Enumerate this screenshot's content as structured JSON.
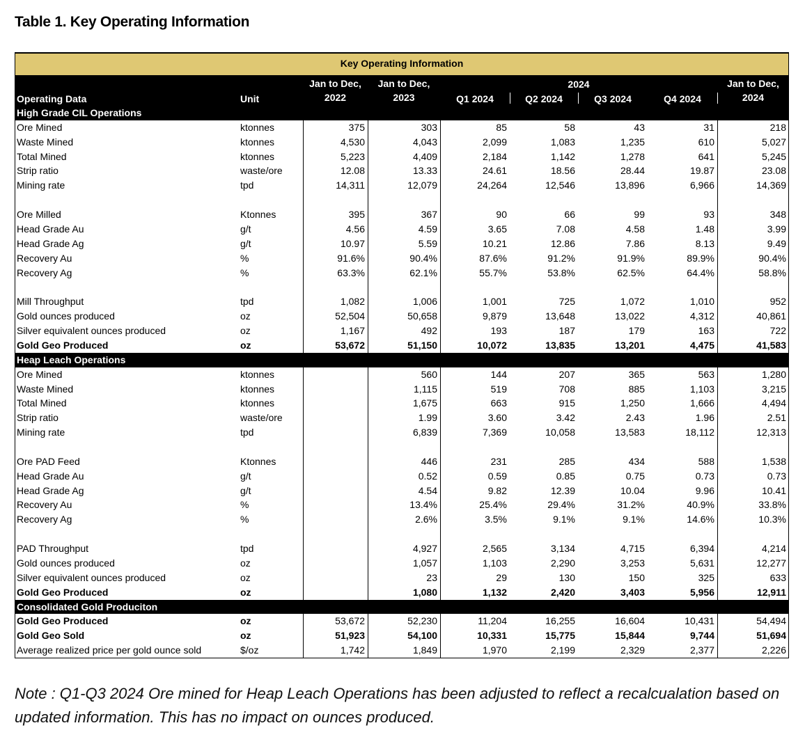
{
  "title": "Table 1. Key Operating Information",
  "table": {
    "banner": "Key Operating Information",
    "header": {
      "label": "Operating Data",
      "unit": "Unit",
      "year_group": "2024",
      "columns": [
        [
          "Jan to Dec,",
          "2022"
        ],
        [
          "Jan to Dec,",
          "2023"
        ],
        [
          "Q1 2024"
        ],
        [
          "Q2 2024"
        ],
        [
          "Q3 2024"
        ],
        [
          "Q4 2024"
        ],
        [
          "Jan to Dec,",
          "2024"
        ]
      ]
    },
    "sections": [
      {
        "title": "High Grade CIL Operations",
        "groups": [
          [
            {
              "label": "Ore Mined",
              "unit": "ktonnes",
              "values": [
                "375",
                "303",
                "85",
                "58",
                "43",
                "31",
                "218"
              ]
            },
            {
              "label": "Waste Mined",
              "unit": "ktonnes",
              "values": [
                "4,530",
                "4,043",
                "2,099",
                "1,083",
                "1,235",
                "610",
                "5,027"
              ]
            },
            {
              "label": "Total Mined",
              "unit": "ktonnes",
              "values": [
                "5,223",
                "4,409",
                "2,184",
                "1,142",
                "1,278",
                "641",
                "5,245"
              ]
            },
            {
              "label": "Strip ratio",
              "unit": "waste/ore",
              "values": [
                "12.08",
                "13.33",
                "24.61",
                "18.56",
                "28.44",
                "19.87",
                "23.08"
              ]
            },
            {
              "label": "Mining rate",
              "unit": "tpd",
              "values": [
                "14,311",
                "12,079",
                "24,264",
                "12,546",
                "13,896",
                "6,966",
                "14,369"
              ]
            }
          ],
          [
            {
              "label": "Ore Milled",
              "unit": "Ktonnes",
              "values": [
                "395",
                "367",
                "90",
                "66",
                "99",
                "93",
                "348"
              ]
            },
            {
              "label": "Head Grade Au",
              "unit": "g/t",
              "values": [
                "4.56",
                "4.59",
                "3.65",
                "7.08",
                "4.58",
                "1.48",
                "3.99"
              ]
            },
            {
              "label": "Head Grade Ag",
              "unit": "g/t",
              "values": [
                "10.97",
                "5.59",
                "10.21",
                "12.86",
                "7.86",
                "8.13",
                "9.49"
              ]
            },
            {
              "label": "Recovery Au",
              "unit": "%",
              "values": [
                "91.6%",
                "90.4%",
                "87.6%",
                "91.2%",
                "91.9%",
                "89.9%",
                "90.4%"
              ]
            },
            {
              "label": "Recovery Ag",
              "unit": "%",
              "values": [
                "63.3%",
                "62.1%",
                "55.7%",
                "53.8%",
                "62.5%",
                "64.4%",
                "58.8%"
              ]
            }
          ],
          [
            {
              "label": "Mill Throughput",
              "unit": "tpd",
              "values": [
                "1,082",
                "1,006",
                "1,001",
                "725",
                "1,072",
                "1,010",
                "952"
              ]
            },
            {
              "label": "Gold ounces produced",
              "unit": "oz",
              "values": [
                "52,504",
                "50,658",
                "9,879",
                "13,648",
                "13,022",
                "4,312",
                "40,861"
              ]
            },
            {
              "label": "Silver equivalent ounces produced",
              "unit": "oz",
              "values": [
                "1,167",
                "492",
                "193",
                "187",
                "179",
                "163",
                "722"
              ]
            },
            {
              "label": "Gold Geo Produced",
              "unit": "oz",
              "values": [
                "53,672",
                "51,150",
                "10,072",
                "13,835",
                "13,201",
                "4,475",
                "41,583"
              ],
              "bold": "all"
            }
          ]
        ]
      },
      {
        "title": "Heap Leach Operations",
        "groups": [
          [
            {
              "label": "Ore Mined",
              "unit": "ktonnes",
              "values": [
                null,
                "560",
                "144",
                "207",
                "365",
                "563",
                "1,280"
              ]
            },
            {
              "label": "Waste Mined",
              "unit": "ktonnes",
              "values": [
                null,
                "1,115",
                "519",
                "708",
                "885",
                "1,103",
                "3,215"
              ]
            },
            {
              "label": "Total Mined",
              "unit": "ktonnes",
              "values": [
                null,
                "1,675",
                "663",
                "915",
                "1,250",
                "1,666",
                "4,494"
              ]
            },
            {
              "label": "Strip ratio",
              "unit": "waste/ore",
              "values": [
                null,
                "1.99",
                "3.60",
                "3.42",
                "2.43",
                "1.96",
                "2.51"
              ]
            },
            {
              "label": "Mining rate",
              "unit": "tpd",
              "values": [
                null,
                "6,839",
                "7,369",
                "10,058",
                "13,583",
                "18,112",
                "12,313"
              ]
            }
          ],
          [
            {
              "label": "Ore PAD Feed",
              "unit": "Ktonnes",
              "values": [
                null,
                "446",
                "231",
                "285",
                "434",
                "588",
                "1,538"
              ]
            },
            {
              "label": "Head Grade Au",
              "unit": "g/t",
              "values": [
                null,
                "0.52",
                "0.59",
                "0.85",
                "0.75",
                "0.73",
                "0.73"
              ]
            },
            {
              "label": "Head Grade Ag",
              "unit": "g/t",
              "values": [
                null,
                "4.54",
                "9.82",
                "12.39",
                "10.04",
                "9.96",
                "10.41"
              ]
            },
            {
              "label": "Recovery Au",
              "unit": "%",
              "values": [
                null,
                "13.4%",
                "25.4%",
                "29.4%",
                "31.2%",
                "40.9%",
                "33.8%"
              ]
            },
            {
              "label": "Recovery Ag",
              "unit": "%",
              "values": [
                null,
                "2.6%",
                "3.5%",
                "9.1%",
                "9.1%",
                "14.6%",
                "10.3%"
              ]
            }
          ],
          [
            {
              "label": "PAD Throughput",
              "unit": "tpd",
              "values": [
                null,
                "4,927",
                "2,565",
                "3,134",
                "4,715",
                "6,394",
                "4,214"
              ]
            },
            {
              "label": "Gold ounces produced",
              "unit": "oz",
              "values": [
                null,
                "1,057",
                "1,103",
                "2,290",
                "3,253",
                "5,631",
                "12,277"
              ]
            },
            {
              "label": "Silver equivalent ounces produced",
              "unit": "oz",
              "values": [
                null,
                "23",
                "29",
                "130",
                "150",
                "325",
                "633"
              ]
            },
            {
              "label": "Gold Geo Produced",
              "unit": "oz",
              "values": [
                null,
                "1,080",
                "1,132",
                "2,420",
                "3,403",
                "5,956",
                "12,911"
              ],
              "bold": "all"
            }
          ]
        ]
      },
      {
        "title": "Consolidated Gold Produciton",
        "groups": [
          [
            {
              "label": "Gold Geo Produced",
              "unit": "oz",
              "values": [
                "53,672",
                "52,230",
                "11,204",
                "16,255",
                "16,604",
                "10,431",
                "54,494"
              ],
              "bold": "label"
            },
            {
              "label": "Gold Geo Sold",
              "unit": "oz",
              "values": [
                "51,923",
                "54,100",
                "10,331",
                "15,775",
                "15,844",
                "9,744",
                "51,694"
              ],
              "bold": "all"
            },
            {
              "label": "Average realized price per gold ounce sold",
              "unit": "$/oz",
              "values": [
                "1,742",
                "1,849",
                "1,970",
                "2,199",
                "2,329",
                "2,377",
                "2,226"
              ]
            }
          ]
        ]
      }
    ]
  },
  "note": "Note : Q1-Q3 2024 Ore mined for Heap Leach Operations has been adjusted to reflect a recalcualation based on updated information. This has no impact on ounces produced."
}
